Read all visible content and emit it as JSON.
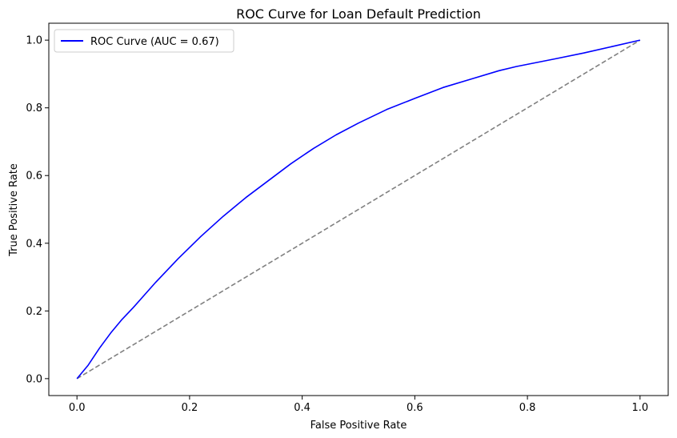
{
  "chart_data": {
    "type": "line",
    "title": "ROC Curve for Loan Default Prediction",
    "xlabel": "False Positive Rate",
    "ylabel": "True Positive Rate",
    "xlim": [
      -0.05,
      1.05
    ],
    "ylim": [
      -0.05,
      1.05
    ],
    "x_ticks": [
      "0.0",
      "0.2",
      "0.4",
      "0.6",
      "0.8",
      "1.0"
    ],
    "y_ticks": [
      "0.0",
      "0.2",
      "0.4",
      "0.6",
      "0.8",
      "1.0"
    ],
    "grid": false,
    "legend_position": "top-left",
    "series": [
      {
        "name": "ROC Curve (AUC = 0.67)",
        "color": "#0000ff",
        "style": "solid",
        "x": [
          0.0,
          0.02,
          0.04,
          0.06,
          0.08,
          0.1,
          0.14,
          0.18,
          0.22,
          0.26,
          0.3,
          0.34,
          0.38,
          0.42,
          0.46,
          0.5,
          0.55,
          0.6,
          0.65,
          0.7,
          0.75,
          0.78,
          0.85,
          0.9,
          0.95,
          1.0
        ],
        "y": [
          0.0,
          0.04,
          0.09,
          0.135,
          0.175,
          0.21,
          0.285,
          0.355,
          0.42,
          0.48,
          0.535,
          0.585,
          0.635,
          0.68,
          0.72,
          0.755,
          0.795,
          0.828,
          0.86,
          0.885,
          0.91,
          0.922,
          0.945,
          0.962,
          0.981,
          1.0
        ]
      },
      {
        "name": "",
        "color": "#808080",
        "style": "dashed",
        "x": [
          0.0,
          1.0
        ],
        "y": [
          0.0,
          1.0
        ]
      }
    ]
  }
}
